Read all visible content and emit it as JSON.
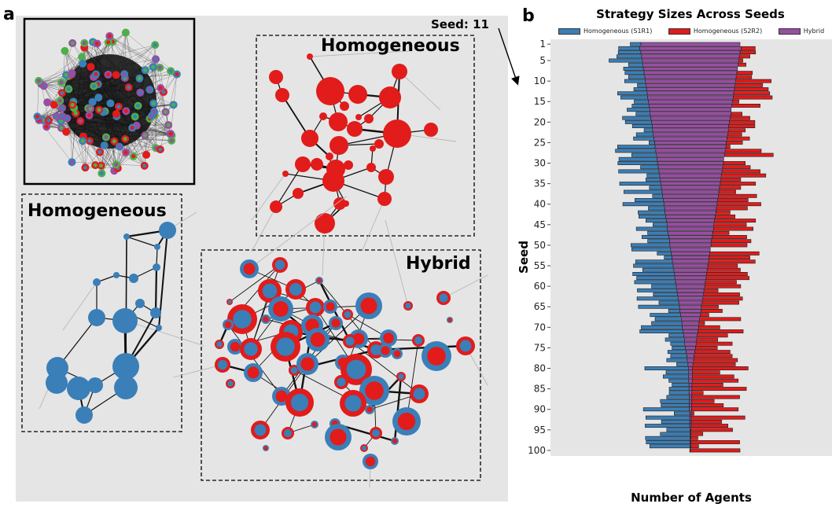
{
  "panel_a": {
    "label": "a",
    "seed_label": "Seed: 11",
    "clusters": {
      "homogeneous_red": "Homogeneous",
      "homogeneous_blue": "Homogeneous",
      "hybrid": "Hybrid"
    },
    "colors": {
      "blue": "#3a7fb8",
      "red": "#e21b1b",
      "green": "#4daf4a",
      "purple": "#984ea3",
      "background": "#e5e5e5"
    }
  },
  "panel_b": {
    "label": "b"
  },
  "chart_data": {
    "type": "bar",
    "orientation": "horizontal-diverging-stacked",
    "title": "Strategy Sizes Across Seeds",
    "xlabel": "Number of Agents",
    "ylabel": "Seed",
    "y_ticks": [
      1,
      5,
      10,
      15,
      20,
      25,
      30,
      35,
      40,
      45,
      50,
      55,
      60,
      65,
      70,
      75,
      80,
      85,
      90,
      95,
      100
    ],
    "grid": false,
    "legend_position": "top",
    "series": [
      {
        "name": "Homogeneous (S1R1)",
        "color": "#3a7fb8",
        "values": [
          15,
          30,
          32,
          35,
          47,
          20,
          28,
          27,
          23,
          29,
          12,
          18,
          42,
          38,
          20,
          24,
          32,
          20,
          40,
          37,
          28,
          12,
          24,
          29,
          8,
          53,
          57,
          35,
          54,
          56,
          25,
          57,
          18,
          20,
          58,
          17,
          54,
          14,
          40,
          58,
          23,
          38,
          38,
          29,
          20,
          44,
          29,
          38,
          31,
          55,
          55,
          20,
          11,
          52,
          56,
          44,
          59,
          54,
          58,
          35,
          56,
          34,
          58,
          28,
          58,
          16,
          43,
          37,
          43,
          58,
          61,
          21,
          27,
          20,
          19,
          26,
          23,
          29,
          16,
          62,
          32,
          36,
          28,
          24,
          28,
          28,
          32,
          41,
          40,
          65,
          22,
          62,
          40,
          63,
          33,
          42,
          63,
          62,
          57,
          1
        ]
      },
      {
        "name": "Homogeneous (S2R2)",
        "color": "#e21b1b",
        "values": [
          0,
          20,
          22,
          15,
          6,
          11,
          0,
          22,
          22,
          50,
          39,
          48,
          51,
          55,
          9,
          40,
          0,
          16,
          28,
          36,
          37,
          24,
          20,
          32,
          23,
          6,
          51,
          69,
          0,
          31,
          39,
          54,
          63,
          28,
          50,
          30,
          24,
          54,
          43,
          62,
          44,
          20,
          28,
          58,
          46,
          56,
          23,
          49,
          56,
          51,
          0,
          70,
          58,
          66,
          42,
          47,
          58,
          61,
          44,
          51,
          20,
          51,
          56,
          52,
          24,
          30,
          12,
          58,
          8,
          30,
          64,
          43,
          30,
          51,
          31,
          50,
          54,
          62,
          60,
          79,
          39,
          59,
          65,
          44,
          77,
          16,
          68,
          32,
          45,
          66,
          4,
          76,
          43,
          52,
          59,
          17,
          10,
          69,
          11,
          70
        ]
      },
      {
        "name": "Hybrid",
        "color": "#984ea3",
        "values": [
          140,
          143,
          140,
          138,
          136,
          135,
          133,
          131,
          129,
          128,
          126,
          124,
          122,
          121,
          119,
          117,
          115,
          114,
          112,
          110,
          108,
          107,
          105,
          103,
          101,
          100,
          98,
          96,
          94,
          93,
          91,
          89,
          87,
          86,
          84,
          82,
          80,
          79,
          77,
          75,
          73,
          72,
          70,
          68,
          66,
          65,
          63,
          61,
          59,
          58,
          56,
          54,
          52,
          51,
          49,
          47,
          45,
          44,
          42,
          40,
          38,
          37,
          35,
          33,
          31,
          30,
          28,
          26,
          24,
          23,
          21,
          19,
          17,
          16,
          14,
          12,
          10,
          9,
          7,
          5,
          5,
          5,
          5,
          4,
          4,
          4,
          3,
          3,
          3,
          3,
          2,
          2,
          2,
          2,
          1,
          1,
          1,
          1,
          1,
          0
        ]
      }
    ]
  }
}
